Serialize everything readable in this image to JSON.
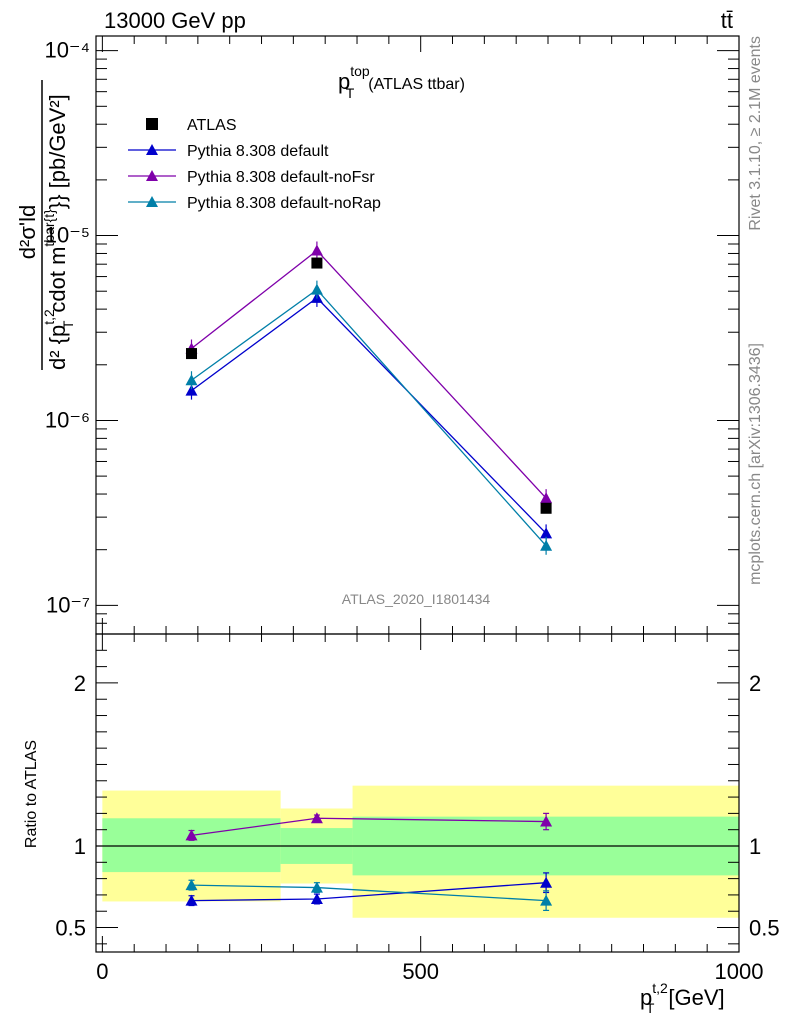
{
  "header": {
    "process": "13000 GeV pp",
    "final_state": "tt̄"
  },
  "side_labels": {
    "rivet": "Rivet 3.1.10, ≥ 2.1M events",
    "mcplots": "mcplots.cern.ch [arXiv:1306.3436]"
  },
  "plot": {
    "title_main": "p",
    "title_sup": "top",
    "title_sub": "T",
    "title_rest": "(ATLAS ttbar)",
    "watermark": "ATLAS_2020_I1801434",
    "ylabel_numerator": "d²σ'ld",
    "ylabel_denominator_pre": "d² {p",
    "ylabel_denominator_sup": "t,2",
    "ylabel_denominator_sub": "T",
    "ylabel_denominator_mid": "cdot m",
    "ylabel_denominator_sup2": "tbar{t}",
    "ylabel_denominator_post": "}} [pb/GeV²]",
    "ratio_ylabel": "Ratio to ATLAS",
    "xlabel_main": "p",
    "xlabel_sup": "t,2",
    "xlabel_sub": "T",
    "xlabel_rest": "[GeV]"
  },
  "legend": [
    {
      "label": "ATLAS",
      "marker": "square",
      "color": "#000000"
    },
    {
      "label": "Pythia 8.308 default",
      "marker": "triangle",
      "color": "#0000cc"
    },
    {
      "label": "Pythia 8.308 default-noFsr",
      "marker": "triangle",
      "color": "#7f00aa"
    },
    {
      "label": "Pythia 8.308 default-noRap",
      "marker": "triangle",
      "color": "#007fa8"
    }
  ],
  "chart_data": {
    "type": "scatter",
    "x_axis": {
      "range": [
        -10,
        1000
      ],
      "ticks": [
        0,
        500,
        1000
      ],
      "tick_labels": [
        "0",
        "500",
        "1000"
      ]
    },
    "main_y_axis": {
      "scale": "log",
      "range": [
        7e-08,
        0.00012
      ],
      "ticks": [
        1e-07,
        1e-06,
        1e-05,
        0.0001
      ],
      "tick_labels": [
        "10⁻⁷",
        "10⁻⁶",
        "10⁻⁵",
        "10⁻⁴"
      ]
    },
    "ratio_y_axis": {
      "scale": "linear",
      "range": [
        0.35,
        2.3
      ],
      "ticks": [
        0.5,
        1,
        2
      ],
      "tick_labels": [
        "0.5",
        "1",
        "2"
      ]
    },
    "bins": [
      {
        "low": 0,
        "high": 280
      },
      {
        "low": 280,
        "high": 393
      },
      {
        "low": 393,
        "high": 1000
      }
    ],
    "x": [
      140,
      337,
      697
    ],
    "atlas": {
      "name": "ATLAS",
      "values": [
        2.3e-06,
        7.1e-06,
        3.35e-07
      ]
    },
    "band_yellow": [
      [
        0.66,
        1.34
      ],
      [
        0.77,
        1.23
      ],
      [
        0.56,
        1.37
      ]
    ],
    "band_green": [
      [
        0.84,
        1.17
      ],
      [
        0.89,
        1.11
      ],
      [
        0.82,
        1.18
      ]
    ],
    "series": [
      {
        "name": "Pythia 8.308 default",
        "color": "#0000cc",
        "values": [
          1.45e-06,
          4.6e-06,
          2.45e-07
        ],
        "ratio": [
          0.665,
          0.675,
          0.775
        ],
        "ratio_err": [
          0.03,
          0.03,
          0.06
        ]
      },
      {
        "name": "Pythia 8.308 default-noFsr",
        "color": "#7f00aa",
        "values": [
          2.45e-06,
          8.3e-06,
          3.8e-07
        ],
        "ratio": [
          1.065,
          1.17,
          1.15
        ],
        "ratio_err": [
          0.03,
          0.02,
          0.05
        ]
      },
      {
        "name": "Pythia 8.308 default-noRap",
        "color": "#007fa8",
        "values": [
          1.65e-06,
          5.1e-06,
          2.1e-07
        ],
        "ratio": [
          0.76,
          0.745,
          0.665
        ],
        "ratio_err": [
          0.03,
          0.03,
          0.06
        ]
      }
    ]
  }
}
